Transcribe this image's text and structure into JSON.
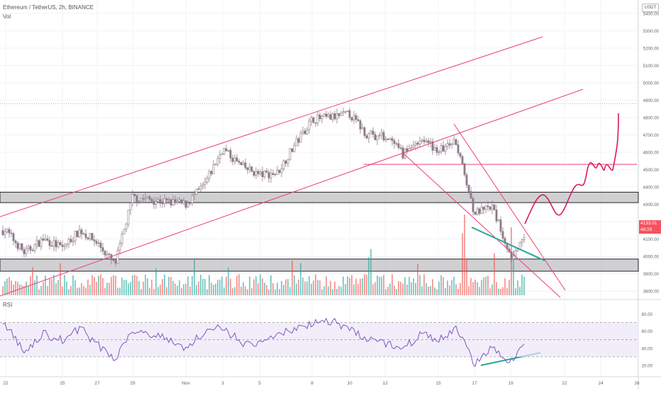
{
  "header": {
    "title": "Ethereum / TetherUS, 2h, BINANCE",
    "vol_label": "Vol",
    "rsi_label": "RSI",
    "currency": "USDT"
  },
  "price_badge": {
    "price": "4133.01",
    "countdown": "48:29"
  },
  "colors": {
    "up": "#26a69a",
    "down": "#ef5350",
    "candle": "#8d7b86",
    "trendline": "#ec407a",
    "projection": "#d81b60",
    "box_fill": "#a9a9ad",
    "rsi_line": "#7e57c2",
    "rsi_band": "#ede7f6",
    "support_green": "#26a69a"
  },
  "chart_data": [
    {
      "type": "candlestick",
      "title": "Ethereum / TetherUS, 2h, BINANCE",
      "x_ticks": [
        "22",
        "25",
        "27",
        "29",
        "Nov",
        "3",
        "5",
        "8",
        "10",
        "12",
        "15",
        "17",
        "19",
        "22",
        "24",
        "26"
      ],
      "y_ticks": [
        3800,
        3900,
        4000,
        4100,
        4200,
        4300,
        4400,
        4500,
        4600,
        4700,
        4800,
        4900,
        5000,
        5100,
        5200,
        5300,
        5400
      ],
      "ylim": [
        3760,
        5440
      ],
      "close_anchors": {
        "x": [
          "22",
          "23",
          "24",
          "25",
          "26",
          "27",
          "28",
          "29",
          "30",
          "Nov",
          "2",
          "3",
          "4",
          "5",
          "6",
          "7",
          "8",
          "9",
          "10",
          "11",
          "12",
          "13",
          "14",
          "15",
          "16",
          "17",
          "18",
          "19",
          "20"
        ],
        "close": [
          4150,
          4020,
          4100,
          4050,
          4150,
          4080,
          3950,
          4340,
          4320,
          4300,
          4410,
          4620,
          4520,
          4470,
          4480,
          4640,
          4790,
          4800,
          4820,
          4700,
          4690,
          4590,
          4680,
          4610,
          4660,
          4250,
          4280,
          4000,
          4133
        ]
      },
      "current_price": 4133.01,
      "horizontal_levels": [
        4880,
        4530
      ],
      "zones": [
        {
          "from": 4310,
          "to": 4370
        },
        {
          "from": 3915,
          "to": 3985
        }
      ],
      "trendlines": [
        {
          "name": "channel-upper",
          "from": [
            "22",
            4270
          ],
          "to": [
            "23",
            5280
          ]
        },
        {
          "name": "channel-lower",
          "from": [
            "22",
            3800
          ],
          "to": [
            "22",
            4950
          ]
        },
        {
          "name": "wedge-upper",
          "from": [
            "15",
            4760
          ],
          "to": [
            "22",
            3790
          ]
        },
        {
          "name": "wedge-lower",
          "from": [
            "13",
            4520
          ],
          "to": [
            "21",
            3760
          ]
        }
      ],
      "projection_path": [
        [
          "20",
          4133
        ],
        [
          "21",
          4300
        ],
        [
          "21",
          4220
        ],
        [
          "22",
          4400
        ],
        [
          "23",
          4540
        ],
        [
          "24",
          4500
        ],
        [
          "25",
          4550
        ],
        [
          "25",
          4800
        ]
      ]
    },
    {
      "type": "bar",
      "title": "Vol",
      "note": "volume histogram, heights in relative units"
    },
    {
      "type": "line",
      "title": "RSI",
      "y_ticks": [
        20,
        40,
        60,
        80
      ],
      "ylim": [
        15,
        87
      ],
      "bands": [
        30,
        70
      ],
      "mid": 50,
      "anchors": {
        "x": [
          "22",
          "23",
          "24",
          "25",
          "26",
          "27",
          "28",
          "29",
          "30",
          "Nov",
          "2",
          "3",
          "4",
          "5",
          "6",
          "7",
          "8",
          "9",
          "10",
          "11",
          "12",
          "13",
          "14",
          "15",
          "16",
          "17",
          "18",
          "19",
          "20"
        ],
        "rsi": [
          68,
          34,
          57,
          49,
          64,
          44,
          28,
          62,
          55,
          40,
          60,
          64,
          47,
          44,
          56,
          62,
          70,
          72,
          63,
          50,
          46,
          40,
          56,
          50,
          62,
          22,
          40,
          25,
          47
        ]
      }
    }
  ]
}
